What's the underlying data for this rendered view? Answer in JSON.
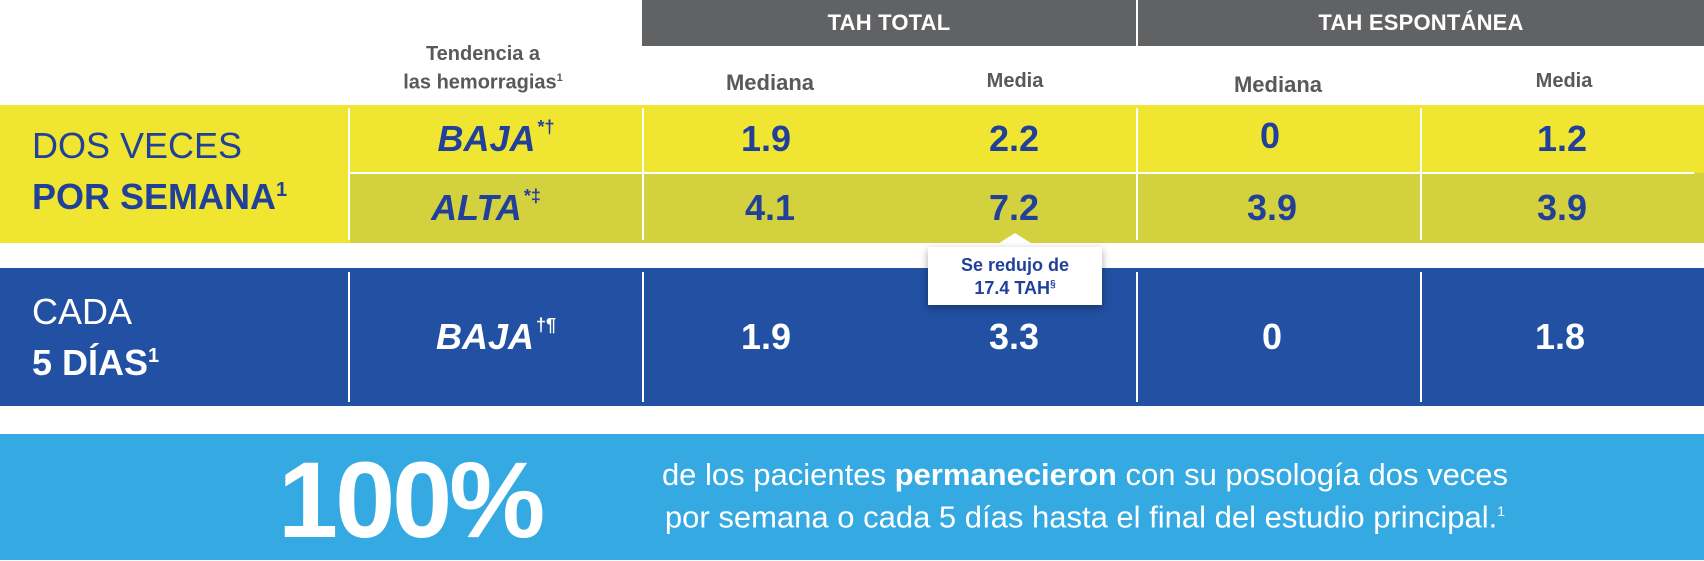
{
  "header": {
    "group1": "TAH TOTAL",
    "group2": "TAH ESPONTÁNEA",
    "tendencia_line1": "Tendencia a",
    "tendencia_line2": "las hemorragias",
    "tendencia_sup": "1",
    "sub_mediana": "Mediana",
    "sub_media": "Media"
  },
  "chart_data": {
    "type": "table",
    "columns": [
      "TAH TOTAL Mediana",
      "TAH TOTAL Media",
      "TAH ESPONTÁNEA Mediana",
      "TAH ESPONTÁNEA Media"
    ],
    "groups": [
      {
        "label_line1": "DOS VECES",
        "label_line2": "POR SEMANA",
        "label_sup": "1",
        "rows": [
          {
            "tendencia": "BAJA",
            "tendencia_sup": "*†",
            "values": [
              "1.9",
              "2.2",
              "0",
              "1.2"
            ]
          },
          {
            "tendencia": "ALTA",
            "tendencia_sup": "*‡",
            "values": [
              "4.1",
              "7.2",
              "3.9",
              "3.9"
            ]
          }
        ]
      },
      {
        "label_line1": "CADA",
        "label_line2": "5 DÍAS",
        "label_sup": "1",
        "rows": [
          {
            "tendencia": "BAJA",
            "tendencia_sup": "†¶",
            "values": [
              "1.9",
              "3.3",
              "0",
              "1.8"
            ]
          }
        ]
      }
    ]
  },
  "callout": {
    "line1": "Se redujo de",
    "line2": "17.4 TAH",
    "sup": "§"
  },
  "footer": {
    "big": "100%",
    "text_a": "de los pacientes ",
    "text_bold": "permanecieron",
    "text_b": " con su posología dos veces",
    "text_line2": "por semana o cada 5 días hasta el final del estudio principal.",
    "sup": "1"
  },
  "colors": {
    "header_gray": "#616264",
    "yellow": "#f0e631",
    "olive": "#d4d13f",
    "blue": "#2250a2",
    "text_blue": "#21409a",
    "cyan": "#35aae2"
  }
}
